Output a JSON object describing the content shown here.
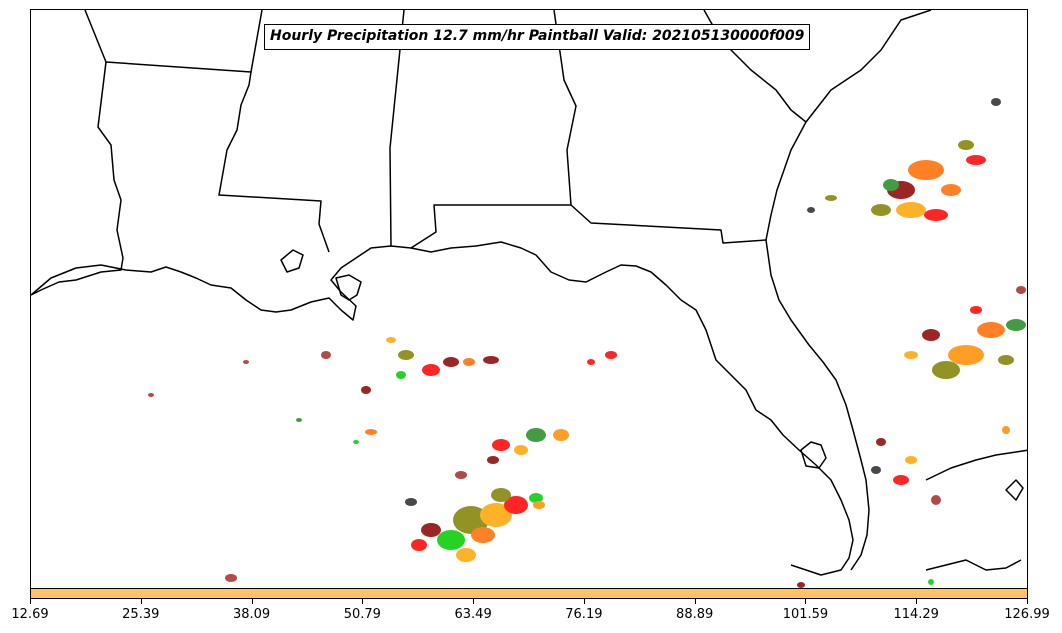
{
  "title": "Hourly Precipitation 12.7 mm/hr Paintball Valid: 202105130000f009",
  "colorbar": {
    "color": "#ffc266",
    "tick_labels": [
      "12.69",
      "25.39",
      "38.09",
      "50.79",
      "63.49",
      "76.19",
      "88.89",
      "101.59",
      "114.29",
      "126.99"
    ]
  },
  "map": {
    "region": "Gulf of Mexico / Southeastern United States",
    "land_color": "#ffffff",
    "water_color": "#ffffff",
    "border_color": "#000000"
  },
  "paintball_colors": [
    "#8b0000",
    "#ff0000",
    "#ff6a00",
    "#ff8c00",
    "#ffa500",
    "#808000",
    "#228b22",
    "#00cc00",
    "#2a2a2a",
    "#a52a2a"
  ]
}
